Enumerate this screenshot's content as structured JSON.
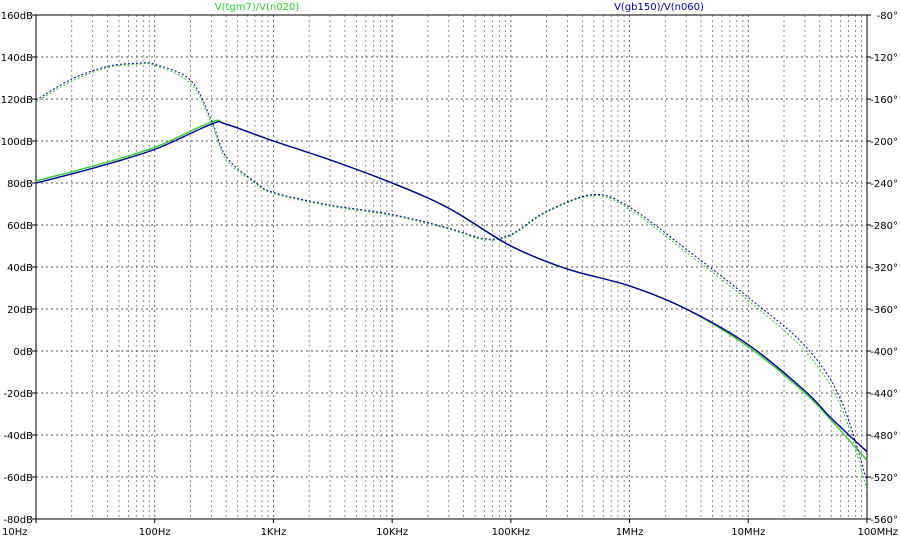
{
  "chart_data": {
    "type": "line",
    "x_scale": "log",
    "x_unit": "Hz",
    "xlim": [
      10,
      100000000
    ],
    "ylim_left": [
      -80,
      160
    ],
    "ylim_right": [
      -560,
      -80
    ],
    "grid": true,
    "x_ticks": [
      {
        "value": 10,
        "label": "10Hz"
      },
      {
        "value": 100,
        "label": "100Hz"
      },
      {
        "value": 1000,
        "label": "1KHz"
      },
      {
        "value": 10000,
        "label": "10KHz"
      },
      {
        "value": 100000,
        "label": "100KHz"
      },
      {
        "value": 1000000,
        "label": "1MHz"
      },
      {
        "value": 10000000,
        "label": "10MHz"
      },
      {
        "value": 100000000,
        "label": "100MHz"
      }
    ],
    "y_left_ticks": [
      {
        "value": 160,
        "label": "160dB"
      },
      {
        "value": 140,
        "label": "140dB"
      },
      {
        "value": 120,
        "label": "120dB"
      },
      {
        "value": 100,
        "label": "100dB"
      },
      {
        "value": 80,
        "label": "80dB"
      },
      {
        "value": 60,
        "label": "60dB"
      },
      {
        "value": 40,
        "label": "40dB"
      },
      {
        "value": 20,
        "label": "20dB"
      },
      {
        "value": 0,
        "label": "0dB"
      },
      {
        "value": -20,
        "label": "-20dB"
      },
      {
        "value": -40,
        "label": "-40dB"
      },
      {
        "value": -60,
        "label": "-60dB"
      },
      {
        "value": -80,
        "label": "-80dB"
      }
    ],
    "y_right_ticks": [
      {
        "value": -80,
        "label": "-80°"
      },
      {
        "value": -120,
        "label": "-120°"
      },
      {
        "value": -160,
        "label": "-160°"
      },
      {
        "value": -200,
        "label": "-200°"
      },
      {
        "value": -240,
        "label": "-240°"
      },
      {
        "value": -280,
        "label": "-280°"
      },
      {
        "value": -320,
        "label": "-320°"
      },
      {
        "value": -360,
        "label": "-360°"
      },
      {
        "value": -400,
        "label": "-400°"
      },
      {
        "value": -440,
        "label": "-440°"
      },
      {
        "value": -480,
        "label": "-480°"
      },
      {
        "value": -520,
        "label": "-520°"
      },
      {
        "value": -560,
        "label": "-560°"
      }
    ],
    "series": [
      {
        "name": "V(tgm7)/V(n020)",
        "color": "#33cc33",
        "magnitude_db": [
          [
            10,
            81
          ],
          [
            30,
            88
          ],
          [
            100,
            97
          ],
          [
            300,
            109
          ],
          [
            400,
            108
          ],
          [
            1000,
            100
          ],
          [
            3000,
            91
          ],
          [
            10000,
            80
          ],
          [
            30000,
            68
          ],
          [
            100000,
            50
          ],
          [
            300000,
            39
          ],
          [
            1000000,
            31
          ],
          [
            3000000,
            20
          ],
          [
            10000000,
            2
          ],
          [
            30000000,
            -20
          ],
          [
            50000000,
            -33
          ],
          [
            100000000,
            -52
          ]
        ],
        "phase_deg": [
          [
            10,
            -163
          ],
          [
            20,
            -143
          ],
          [
            40,
            -130
          ],
          [
            70,
            -127
          ],
          [
            100,
            -128
          ],
          [
            200,
            -145
          ],
          [
            300,
            -183
          ],
          [
            400,
            -218
          ],
          [
            700,
            -240
          ],
          [
            1000,
            -250
          ],
          [
            3000,
            -262
          ],
          [
            10000,
            -271
          ],
          [
            30000,
            -284
          ],
          [
            60000,
            -294
          ],
          [
            100000,
            -290
          ],
          [
            200000,
            -268
          ],
          [
            500000,
            -252
          ],
          [
            1000000,
            -265
          ],
          [
            3000000,
            -306
          ],
          [
            10000000,
            -352
          ],
          [
            30000000,
            -400
          ],
          [
            60000000,
            -452
          ],
          [
            100000000,
            -532
          ]
        ]
      },
      {
        "name": "V(gb150)/V(n060)",
        "color": "#000099",
        "magnitude_db": [
          [
            10,
            80
          ],
          [
            30,
            87
          ],
          [
            100,
            96
          ],
          [
            300,
            108
          ],
          [
            400,
            108
          ],
          [
            1000,
            100
          ],
          [
            3000,
            91
          ],
          [
            10000,
            80
          ],
          [
            30000,
            68
          ],
          [
            100000,
            50
          ],
          [
            300000,
            39
          ],
          [
            1000000,
            31
          ],
          [
            3000000,
            20
          ],
          [
            10000000,
            3
          ],
          [
            30000000,
            -19
          ],
          [
            50000000,
            -32
          ],
          [
            100000000,
            -48
          ]
        ],
        "phase_deg": [
          [
            10,
            -161
          ],
          [
            20,
            -141
          ],
          [
            40,
            -129
          ],
          [
            70,
            -126
          ],
          [
            100,
            -127
          ],
          [
            200,
            -142
          ],
          [
            300,
            -180
          ],
          [
            400,
            -215
          ],
          [
            700,
            -239
          ],
          [
            1000,
            -249
          ],
          [
            3000,
            -261
          ],
          [
            10000,
            -270
          ],
          [
            30000,
            -283
          ],
          [
            60000,
            -293
          ],
          [
            100000,
            -289
          ],
          [
            200000,
            -267
          ],
          [
            500000,
            -251
          ],
          [
            1000000,
            -263
          ],
          [
            3000000,
            -303
          ],
          [
            10000000,
            -349
          ],
          [
            30000000,
            -395
          ],
          [
            60000000,
            -446
          ],
          [
            100000000,
            -524
          ]
        ]
      }
    ]
  }
}
